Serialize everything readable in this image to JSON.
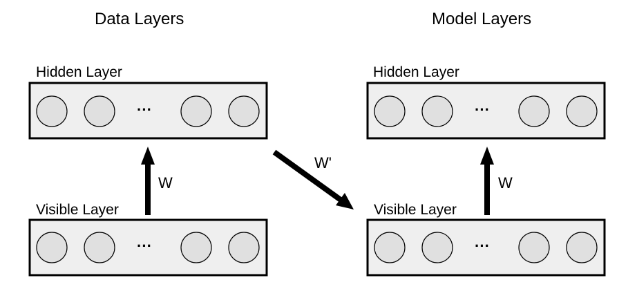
{
  "titles": {
    "data": "Data Layers",
    "model": "Model Layers"
  },
  "data_layers": {
    "hidden_label": "Hidden Layer",
    "visible_label": "Visible Layer",
    "weight_label": "W",
    "ellipsis": "···"
  },
  "model_layers": {
    "hidden_label": "Hidden Layer",
    "visible_label": "Visible Layer",
    "weight_label": "W",
    "ellipsis": "···"
  },
  "transfer": {
    "weight_label": "W'"
  },
  "colors": {
    "box_fill": "#efefef",
    "unit_fill": "#e0e0e0",
    "stroke": "#000000"
  }
}
